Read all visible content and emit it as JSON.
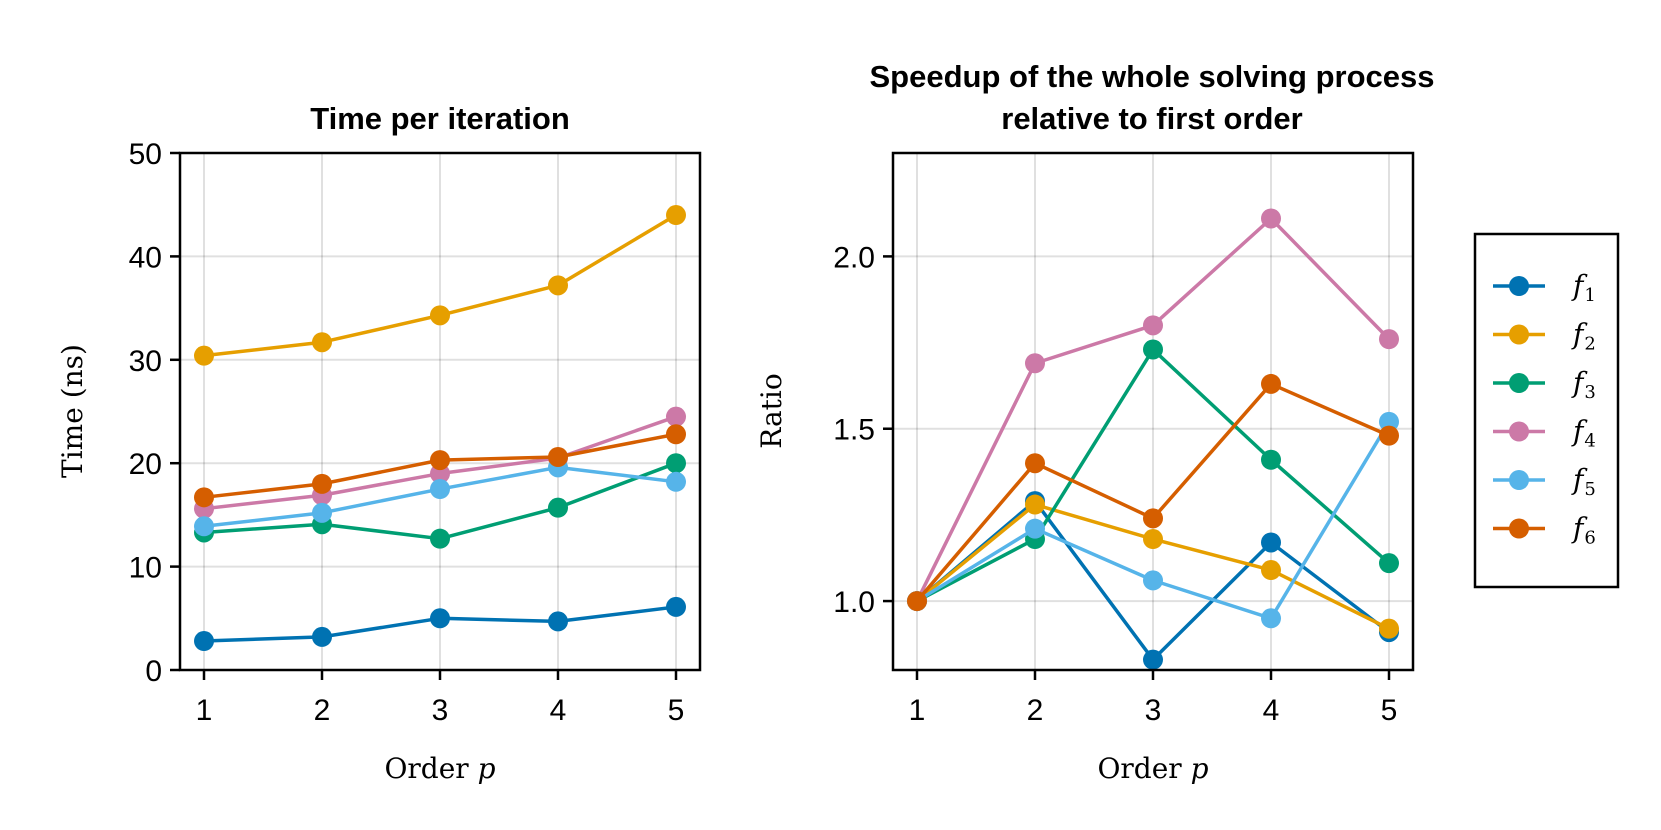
{
  "chart_data": [
    {
      "type": "line",
      "title": "Time per iteration",
      "xlabel": "Order p",
      "ylabel": "Time (ns)",
      "x": [
        1,
        2,
        3,
        4,
        5
      ],
      "xticks": [
        "1",
        "2",
        "3",
        "4",
        "5"
      ],
      "yticks": [
        "0",
        "10",
        "20",
        "30",
        "40",
        "50"
      ],
      "ylim": [
        0,
        50
      ],
      "grid": true,
      "series": [
        {
          "name": "f1",
          "color": "#0072B2",
          "values": [
            2.8,
            3.2,
            5.0,
            4.7,
            6.1
          ]
        },
        {
          "name": "f2",
          "color": "#E69F00",
          "values": [
            30.4,
            31.7,
            34.3,
            37.2,
            44.0
          ]
        },
        {
          "name": "f3",
          "color": "#009E73",
          "values": [
            13.3,
            14.1,
            12.7,
            15.7,
            20.0
          ]
        },
        {
          "name": "f4",
          "color": "#CC79A7",
          "values": [
            15.6,
            16.9,
            19.0,
            20.5,
            24.5
          ]
        },
        {
          "name": "f5",
          "color": "#56B4E9",
          "values": [
            13.9,
            15.2,
            17.5,
            19.6,
            18.2
          ]
        },
        {
          "name": "f6",
          "color": "#D55E00",
          "values": [
            16.7,
            18.0,
            20.3,
            20.6,
            22.8
          ]
        }
      ]
    },
    {
      "type": "line",
      "title": "Speedup of the whole solving process relative to first order",
      "title_lines": [
        "Speedup of the whole solving process",
        "relative to first order"
      ],
      "xlabel": "Order p",
      "ylabel": "Ratio",
      "x": [
        1,
        2,
        3,
        4,
        5
      ],
      "xticks": [
        "1",
        "2",
        "3",
        "4",
        "5"
      ],
      "yticks": [
        "1.0",
        "1.5",
        "2.0"
      ],
      "ylim": [
        0.8,
        2.3
      ],
      "grid": true,
      "legend_position": "right",
      "series": [
        {
          "name": "f1",
          "color": "#0072B2",
          "values": [
            1.0,
            1.29,
            0.83,
            1.17,
            0.91
          ]
        },
        {
          "name": "f2",
          "color": "#E69F00",
          "values": [
            1.0,
            1.28,
            1.18,
            1.09,
            0.92
          ]
        },
        {
          "name": "f3",
          "color": "#009E73",
          "values": [
            1.0,
            1.18,
            1.73,
            1.41,
            1.11
          ]
        },
        {
          "name": "f4",
          "color": "#CC79A7",
          "values": [
            1.0,
            1.69,
            1.8,
            2.11,
            1.76
          ]
        },
        {
          "name": "f5",
          "color": "#56B4E9",
          "values": [
            1.0,
            1.21,
            1.06,
            0.95,
            1.52
          ]
        },
        {
          "name": "f6",
          "color": "#D55E00",
          "values": [
            1.0,
            1.4,
            1.24,
            1.63,
            1.48
          ]
        }
      ]
    }
  ],
  "legend": {
    "entries": [
      {
        "base": "f",
        "sub": "1",
        "color": "#0072B2"
      },
      {
        "base": "f",
        "sub": "2",
        "color": "#E69F00"
      },
      {
        "base": "f",
        "sub": "3",
        "color": "#009E73"
      },
      {
        "base": "f",
        "sub": "4",
        "color": "#CC79A7"
      },
      {
        "base": "f",
        "sub": "5",
        "color": "#56B4E9"
      },
      {
        "base": "f",
        "sub": "6",
        "color": "#D55E00"
      }
    ]
  }
}
